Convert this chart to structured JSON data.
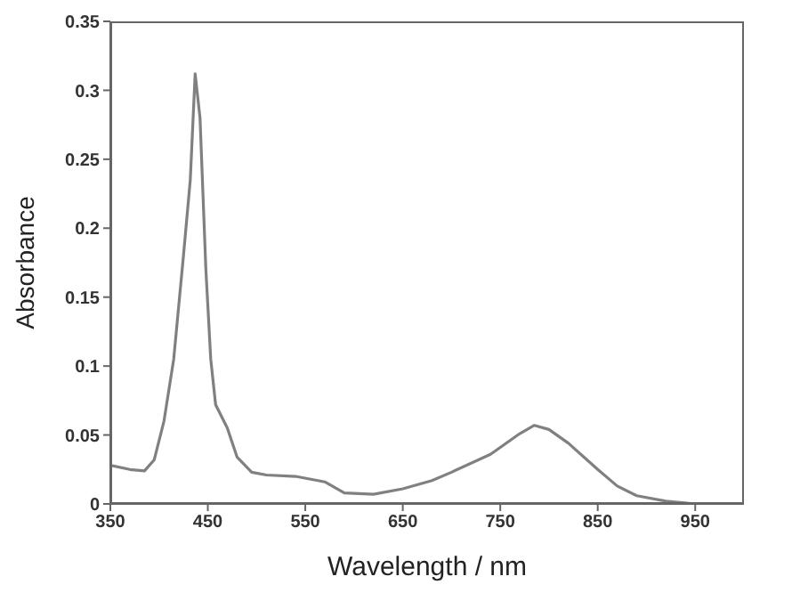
{
  "chart_data": {
    "type": "line",
    "xlabel": "Wavelength / nm",
    "ylabel": "Absorbance",
    "x": [
      350,
      370,
      385,
      395,
      405,
      415,
      425,
      432,
      437,
      442,
      448,
      453,
      458,
      470,
      480,
      495,
      510,
      540,
      570,
      590,
      620,
      650,
      680,
      700,
      740,
      770,
      785,
      800,
      820,
      850,
      870,
      890,
      920,
      950
    ],
    "series": [
      {
        "color": "#808080",
        "values": [
          0.028,
          0.025,
          0.024,
          0.032,
          0.06,
          0.105,
          0.18,
          0.235,
          0.312,
          0.28,
          0.17,
          0.105,
          0.072,
          0.055,
          0.034,
          0.023,
          0.021,
          0.02,
          0.016,
          0.008,
          0.007,
          0.011,
          0.017,
          0.023,
          0.036,
          0.051,
          0.057,
          0.054,
          0.044,
          0.025,
          0.013,
          0.006,
          0.002,
          0.0
        ]
      }
    ],
    "xlim": [
      350,
      1000
    ],
    "xticks": [
      350,
      450,
      550,
      650,
      750,
      850,
      950
    ],
    "ylim": [
      0,
      0.35
    ],
    "yticks": [
      0,
      0.05,
      0.1,
      0.15,
      0.2,
      0.25,
      0.3,
      0.35
    ],
    "grid": false,
    "legend": false,
    "marker": "none",
    "line_style": "solid"
  }
}
